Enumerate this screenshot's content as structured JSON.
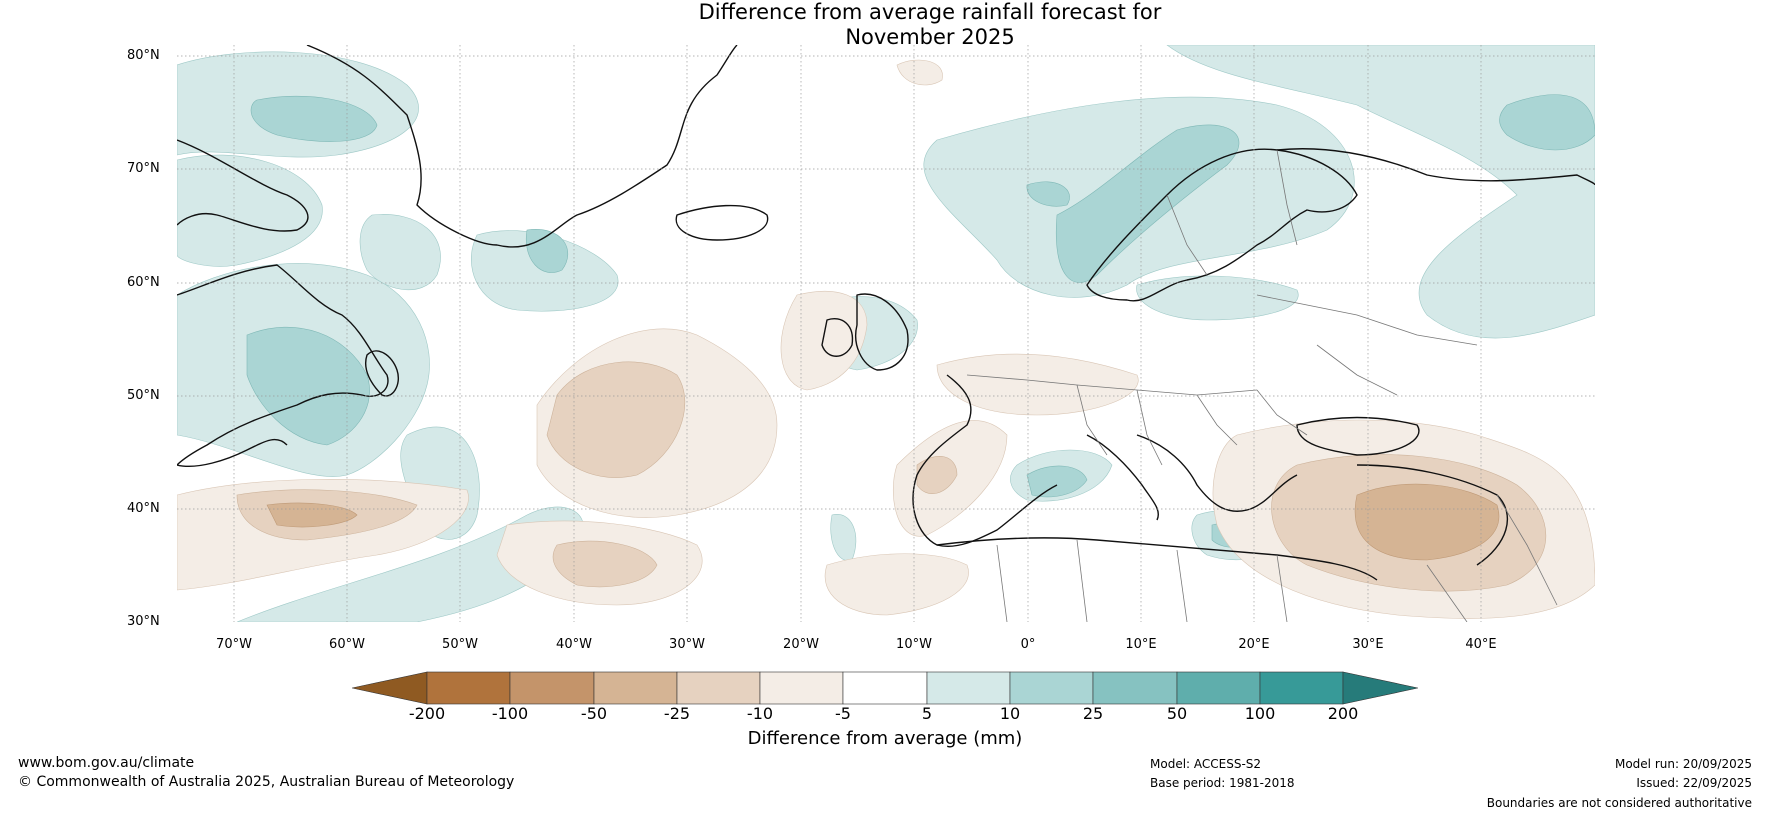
{
  "title": {
    "line1": "Difference from average rainfall forecast for",
    "line2": "November 2025"
  },
  "latitude_labels": [
    "80°N",
    "70°N",
    "60°N",
    "50°N",
    "40°N",
    "30°N"
  ],
  "longitude_labels": [
    "70°W",
    "60°W",
    "50°W",
    "40°W",
    "30°W",
    "20°W",
    "10°W",
    "0°",
    "10°E",
    "20°E",
    "30°E",
    "40°E"
  ],
  "map_extent": {
    "lon_min": -75,
    "lon_max": 50,
    "lat_min": 30,
    "lat_max": 81
  },
  "colorbar": {
    "ticks": [
      "-200",
      "-100",
      "-50",
      "-25",
      "-10",
      "-5",
      "5",
      "10",
      "25",
      "50",
      "100",
      "200"
    ],
    "colors": [
      "#8f5a22",
      "#b0733c",
      "#c4946a",
      "#d5b494",
      "#e6d2c0",
      "#f4ede6",
      "#ffffff",
      "#d5e9e8",
      "#aad5d4",
      "#86c2c1",
      "#5faeac",
      "#379a98",
      "#267b7a"
    ],
    "label": "Difference from average (mm)"
  },
  "anomaly_colors": {
    "wet_light": "#d5e9e8",
    "wet_medium": "#aad5d4",
    "wet_strong": "#86c2c1",
    "dry_light": "#f4ede6",
    "dry_medium": "#e6d2c0",
    "dry_strong": "#d5b494"
  },
  "footer": {
    "website": "www.bom.gov.au/climate",
    "copyright": "© Commonwealth of Australia 2025, Australian Bureau of Meteorology",
    "model": "Model: ACCESS-S2",
    "base_period": "Base period: 1981-2018",
    "model_run": "Model run: 20/09/2025",
    "issued": "Issued: 22/09/2025",
    "disclaimer": "Boundaries are not considered authoritative"
  }
}
